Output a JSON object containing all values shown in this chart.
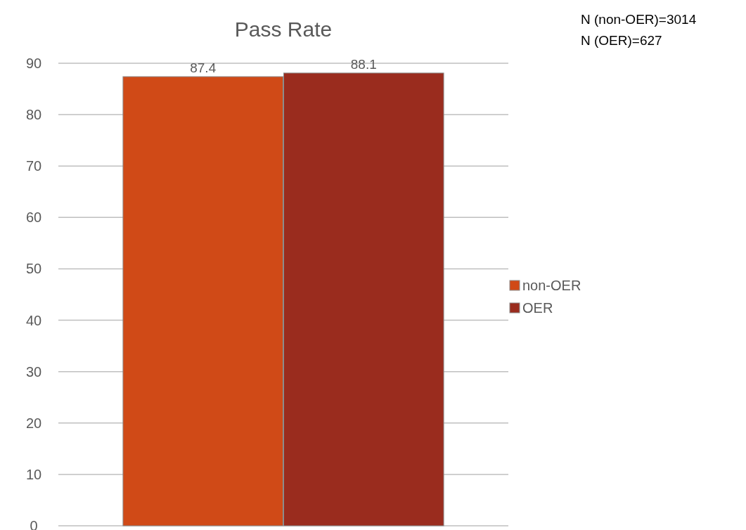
{
  "chart_data": {
    "type": "bar",
    "title": "Pass Rate",
    "categories": [
      null
    ],
    "series": [
      {
        "name": "non-OER",
        "color": "#d04a17",
        "values": [
          87.4
        ]
      },
      {
        "name": "OER",
        "color": "#9a2c1e",
        "values": [
          88.1
        ]
      }
    ],
    "ylim": [
      0,
      90
    ],
    "yticks": [
      0,
      10,
      20,
      30,
      40,
      50,
      60,
      70,
      80,
      90
    ],
    "grid": "y",
    "legend": "right",
    "data_labels": true,
    "annotations": [
      "N (non-OER)=3014",
      "N (OER)=627"
    ]
  }
}
